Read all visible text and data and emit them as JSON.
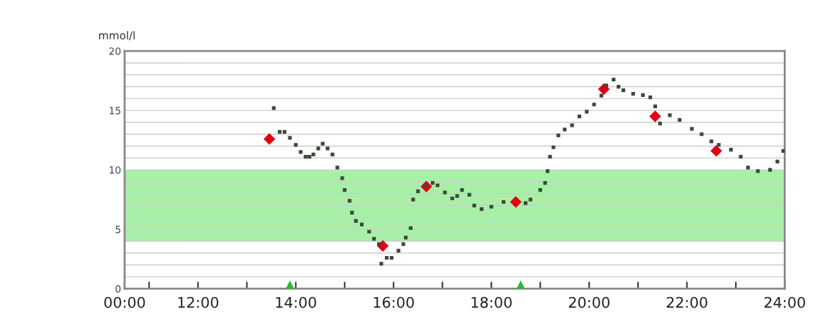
{
  "chart_data": {
    "type": "scatter",
    "ylabel": "mmol/l",
    "xlim": [
      10.5,
      24
    ],
    "ylim": [
      0,
      20
    ],
    "xticks": [
      {
        "value": 10.5,
        "label": "00:00"
      },
      {
        "value": 11,
        "label": null
      },
      {
        "value": 12,
        "label": "12:00"
      },
      {
        "value": 13,
        "label": null
      },
      {
        "value": 14,
        "label": "14:00"
      },
      {
        "value": 15,
        "label": null
      },
      {
        "value": 16,
        "label": "16:00"
      },
      {
        "value": 17,
        "label": null
      },
      {
        "value": 18,
        "label": "18:00"
      },
      {
        "value": 19,
        "label": null
      },
      {
        "value": 20,
        "label": "20:00"
      },
      {
        "value": 21,
        "label": null
      },
      {
        "value": 22,
        "label": "22:00"
      },
      {
        "value": 23,
        "label": null
      },
      {
        "value": 24,
        "label": "24:00"
      }
    ],
    "yticks": [
      0,
      {
        "value": 1,
        "label": null
      },
      {
        "value": 2,
        "label": null
      },
      {
        "value": 3,
        "label": null
      },
      {
        "value": 4,
        "label": null
      },
      5,
      {
        "value": 6,
        "label": null
      },
      {
        "value": 7,
        "label": null
      },
      {
        "value": 8,
        "label": null
      },
      {
        "value": 9,
        "label": null
      },
      10,
      {
        "value": 11,
        "label": null
      },
      {
        "value": 12,
        "label": null
      },
      {
        "value": 13,
        "label": null
      },
      {
        "value": 14,
        "label": null
      },
      15,
      {
        "value": 16,
        "label": null
      },
      {
        "value": 17,
        "label": null
      },
      {
        "value": 18,
        "label": null
      },
      {
        "value": 19,
        "label": null
      },
      20
    ],
    "grid": "y",
    "bands": [
      {
        "axis": "y",
        "from": 4,
        "to": 10,
        "color": "#a8f0a8"
      }
    ],
    "series": [
      {
        "color": "#3a4a3a",
        "marker": "square",
        "x": [
          13.55,
          13.67,
          13.77,
          13.88,
          14.0,
          14.1,
          14.2,
          14.28,
          14.36,
          14.46,
          14.55,
          14.65,
          14.75,
          14.85,
          14.95,
          15.0,
          15.1,
          15.15,
          15.23,
          15.35,
          15.5,
          15.6,
          15.7,
          15.75,
          15.86,
          15.96,
          16.1,
          16.2,
          16.25,
          16.35,
          16.4,
          16.5,
          16.65,
          16.8,
          16.9,
          17.05,
          17.2,
          17.3,
          17.4,
          17.55,
          17.65,
          17.8,
          18.0,
          18.25,
          18.7,
          18.8,
          19.0,
          19.1,
          19.15,
          19.2,
          19.27,
          19.37,
          19.5,
          19.65,
          19.8,
          19.95,
          20.1,
          20.25,
          20.35,
          20.5,
          20.6,
          20.7,
          20.9,
          21.1,
          21.25,
          21.35,
          21.45,
          21.65,
          21.85,
          22.1,
          22.3,
          22.5,
          22.65,
          22.9,
          23.1,
          23.25,
          23.45,
          23.7,
          23.85,
          23.97
        ],
        "values": [
          15.2,
          13.2,
          13.2,
          12.7,
          12.1,
          11.5,
          11.1,
          11.1,
          11.3,
          11.8,
          12.2,
          11.8,
          11.3,
          10.2,
          9.3,
          8.3,
          7.4,
          6.4,
          5.7,
          5.4,
          4.8,
          4.2,
          3.75,
          2.1,
          2.6,
          2.6,
          3.2,
          3.75,
          4.3,
          5.1,
          7.5,
          8.2,
          8.7,
          8.9,
          8.7,
          8.1,
          7.6,
          7.8,
          8.3,
          7.9,
          7.0,
          6.7,
          6.9,
          7.3,
          7.2,
          7.5,
          8.3,
          8.9,
          9.9,
          11.1,
          11.9,
          12.9,
          13.4,
          13.75,
          14.5,
          14.9,
          15.5,
          16.25,
          17.1,
          17.6,
          17.0,
          16.7,
          16.4,
          16.3,
          16.1,
          15.35,
          13.9,
          14.6,
          14.2,
          13.45,
          13.0,
          12.4,
          12.1,
          11.7,
          11.1,
          10.2,
          9.9,
          10.0,
          10.7,
          11.6
        ]
      },
      {
        "color": "#e00010",
        "marker": "diamond",
        "x": [
          13.46,
          15.78,
          16.67,
          18.5,
          20.3,
          21.35,
          22.6
        ],
        "values": [
          12.6,
          3.6,
          8.6,
          7.3,
          16.8,
          14.5,
          11.6
        ]
      },
      {
        "color": "#22bb33",
        "marker": "triangle",
        "x": [
          13.88,
          18.6
        ],
        "values": [
          0.3,
          0.3
        ]
      }
    ]
  }
}
